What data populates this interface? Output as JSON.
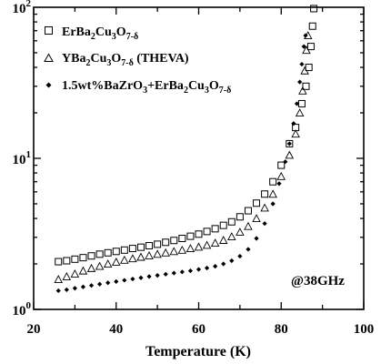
{
  "chart_data": {
    "type": "scatter",
    "xlabel": "Temperature (K)",
    "ylabel": "",
    "xlim": [
      20,
      100
    ],
    "ylim": [
      1,
      100
    ],
    "yscale": "log",
    "x_ticks": [
      "20",
      "40",
      "60",
      "80",
      "100"
    ],
    "y_ticks": [
      {
        "base": "10",
        "exp": "0"
      },
      {
        "base": "10",
        "exp": "1"
      },
      {
        "base": "10",
        "exp": "2"
      }
    ],
    "grid": false,
    "legend_position": "top-left",
    "annotation": "@38GHz",
    "series": [
      {
        "legend": {
          "a": "ErBa",
          "s1": "2",
          "b": "Cu",
          "s2": "3",
          "c": "O",
          "s3": "7-δ",
          "d": ""
        },
        "marker": "square",
        "points": [
          [
            26,
            2.07
          ],
          [
            28,
            2.1
          ],
          [
            30,
            2.15
          ],
          [
            32,
            2.2
          ],
          [
            34,
            2.26
          ],
          [
            36,
            2.32
          ],
          [
            38,
            2.37
          ],
          [
            40,
            2.42
          ],
          [
            42,
            2.47
          ],
          [
            44,
            2.53
          ],
          [
            46,
            2.58
          ],
          [
            48,
            2.64
          ],
          [
            50,
            2.7
          ],
          [
            52,
            2.78
          ],
          [
            54,
            2.86
          ],
          [
            56,
            2.95
          ],
          [
            58,
            3.05
          ],
          [
            60,
            3.15
          ],
          [
            62,
            3.28
          ],
          [
            64,
            3.42
          ],
          [
            66,
            3.6
          ],
          [
            68,
            3.8
          ],
          [
            70,
            4.1
          ],
          [
            72,
            4.5
          ],
          [
            74,
            5.05
          ],
          [
            76,
            5.8
          ],
          [
            78,
            7.0
          ],
          [
            80,
            9.0
          ],
          [
            82,
            12.5
          ],
          [
            83.5,
            16
          ],
          [
            85,
            23
          ],
          [
            86,
            30
          ],
          [
            86.7,
            40
          ],
          [
            87.2,
            55
          ],
          [
            87.6,
            75
          ],
          [
            87.9,
            98
          ]
        ]
      },
      {
        "legend": {
          "a": "YBa",
          "s1": "2",
          "b": "Cu",
          "s2": "3",
          "c": "O",
          "s3": "7-δ",
          "d": " (THEVA)"
        },
        "marker": "triangle",
        "points": [
          [
            26,
            1.58
          ],
          [
            28,
            1.65
          ],
          [
            30,
            1.72
          ],
          [
            32,
            1.8
          ],
          [
            34,
            1.87
          ],
          [
            36,
            1.93
          ],
          [
            38,
            2.0
          ],
          [
            40,
            2.06
          ],
          [
            42,
            2.12
          ],
          [
            44,
            2.17
          ],
          [
            46,
            2.22
          ],
          [
            48,
            2.27
          ],
          [
            50,
            2.32
          ],
          [
            52,
            2.37
          ],
          [
            54,
            2.42
          ],
          [
            56,
            2.47
          ],
          [
            58,
            2.53
          ],
          [
            60,
            2.59
          ],
          [
            62,
            2.66
          ],
          [
            64,
            2.75
          ],
          [
            66,
            2.87
          ],
          [
            68,
            3.03
          ],
          [
            70,
            3.25
          ],
          [
            72,
            3.55
          ],
          [
            74,
            4.0
          ],
          [
            76,
            4.7
          ],
          [
            78,
            5.8
          ],
          [
            80,
            7.6
          ],
          [
            82,
            10.5
          ],
          [
            83.5,
            14.5
          ],
          [
            84.5,
            20
          ],
          [
            85.2,
            28
          ],
          [
            85.7,
            38
          ],
          [
            86.1,
            52
          ],
          [
            86.5,
            65
          ]
        ]
      },
      {
        "legend": {
          "a": "1.5wt%BaZrO",
          "s1": "3",
          "b": "+ErBa",
          "s2": "2",
          "c": "Cu",
          "s3": "3",
          "d": "O",
          "s4": "7-δ"
        },
        "marker": "diamond",
        "points": [
          [
            26,
            1.33
          ],
          [
            28,
            1.35
          ],
          [
            30,
            1.38
          ],
          [
            32,
            1.41
          ],
          [
            34,
            1.44
          ],
          [
            36,
            1.47
          ],
          [
            38,
            1.5
          ],
          [
            40,
            1.53
          ],
          [
            42,
            1.56
          ],
          [
            44,
            1.59
          ],
          [
            46,
            1.62
          ],
          [
            48,
            1.65
          ],
          [
            50,
            1.68
          ],
          [
            52,
            1.71
          ],
          [
            54,
            1.74
          ],
          [
            56,
            1.77
          ],
          [
            58,
            1.8
          ],
          [
            60,
            1.84
          ],
          [
            62,
            1.88
          ],
          [
            64,
            1.93
          ],
          [
            66,
            2.0
          ],
          [
            68,
            2.1
          ],
          [
            70,
            2.25
          ],
          [
            72,
            2.5
          ],
          [
            74,
            2.95
          ],
          [
            76,
            3.7
          ],
          [
            78,
            5.0
          ],
          [
            79.5,
            6.8
          ],
          [
            81,
            9.5
          ],
          [
            82,
            12.5
          ],
          [
            83,
            17
          ],
          [
            83.8,
            23
          ],
          [
            84.5,
            32
          ],
          [
            85,
            42
          ],
          [
            85.5,
            55
          ],
          [
            85.9,
            65
          ]
        ]
      }
    ]
  }
}
